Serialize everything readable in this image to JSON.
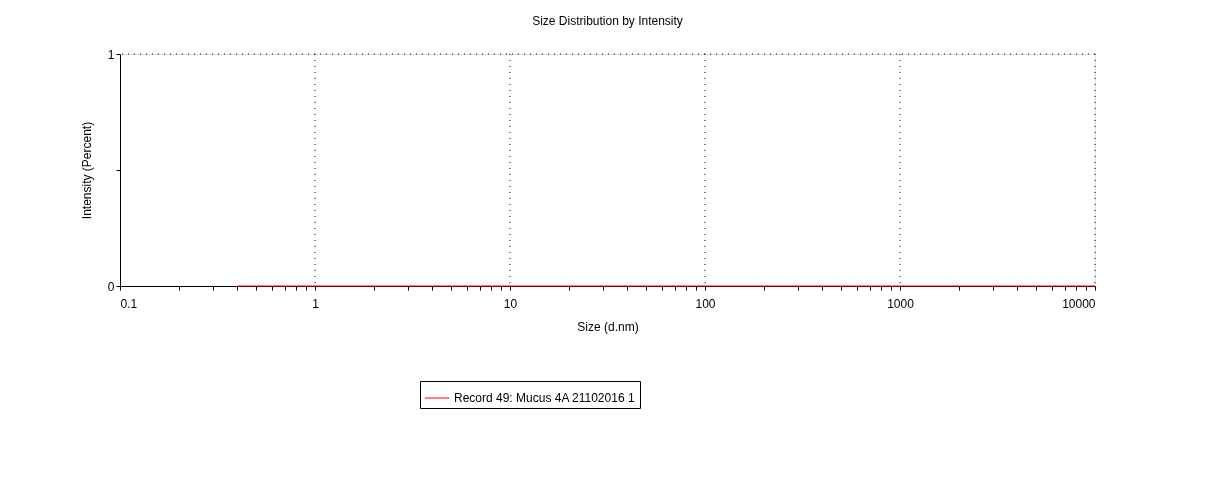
{
  "chart_data": {
    "type": "line",
    "title": "Size Distribution by Intensity",
    "xlabel": "Size (d.nm)",
    "ylabel": "Intensity (Percent)",
    "log": "x",
    "grid": true,
    "legend": "bottom",
    "line_style": "solid",
    "marker": "none",
    "xlim": [
      0.1,
      10000
    ],
    "ylim": [
      0,
      1
    ],
    "xticks": [
      0.1,
      {
        "value": 0.2,
        "label": null
      },
      {
        "value": 0.3,
        "label": null
      },
      {
        "value": 0.4,
        "label": null
      },
      {
        "value": 0.5,
        "label": null
      },
      {
        "value": 0.6,
        "label": null
      },
      {
        "value": 0.7,
        "label": null
      },
      {
        "value": 0.8,
        "label": null
      },
      {
        "value": 0.9,
        "label": null
      },
      1,
      {
        "value": 2,
        "label": null
      },
      {
        "value": 3,
        "label": null
      },
      {
        "value": 4,
        "label": null
      },
      {
        "value": 5,
        "label": null
      },
      {
        "value": 6,
        "label": null
      },
      {
        "value": 7,
        "label": null
      },
      {
        "value": 8,
        "label": null
      },
      {
        "value": 9,
        "label": null
      },
      10,
      {
        "value": 20,
        "label": null
      },
      {
        "value": 30,
        "label": null
      },
      {
        "value": 40,
        "label": null
      },
      {
        "value": 50,
        "label": null
      },
      {
        "value": 60,
        "label": null
      },
      {
        "value": 70,
        "label": null
      },
      {
        "value": 80,
        "label": null
      },
      {
        "value": 90,
        "label": null
      },
      100,
      {
        "value": 200,
        "label": null
      },
      {
        "value": 300,
        "label": null
      },
      {
        "value": 400,
        "label": null
      },
      {
        "value": 500,
        "label": null
      },
      {
        "value": 600,
        "label": null
      },
      {
        "value": 700,
        "label": null
      },
      {
        "value": 800,
        "label": null
      },
      {
        "value": 900,
        "label": null
      },
      1000,
      {
        "value": 2000,
        "label": null
      },
      {
        "value": 3000,
        "label": null
      },
      {
        "value": 4000,
        "label": null
      },
      {
        "value": 5000,
        "label": null
      },
      {
        "value": 6000,
        "label": null
      },
      {
        "value": 7000,
        "label": null
      },
      {
        "value": 8000,
        "label": null
      },
      {
        "value": 9000,
        "label": null
      },
      10000
    ],
    "yticks": [
      0,
      {
        "value": 0.5,
        "label": null
      },
      1
    ],
    "series": [
      {
        "name": "Record 49: Mucus 4A 21102016 1",
        "color": "#ff0000",
        "x": [
          0.4,
          1,
          10,
          100,
          1000,
          10000
        ],
        "values": [
          0,
          0,
          0,
          0,
          0,
          0
        ]
      }
    ]
  }
}
